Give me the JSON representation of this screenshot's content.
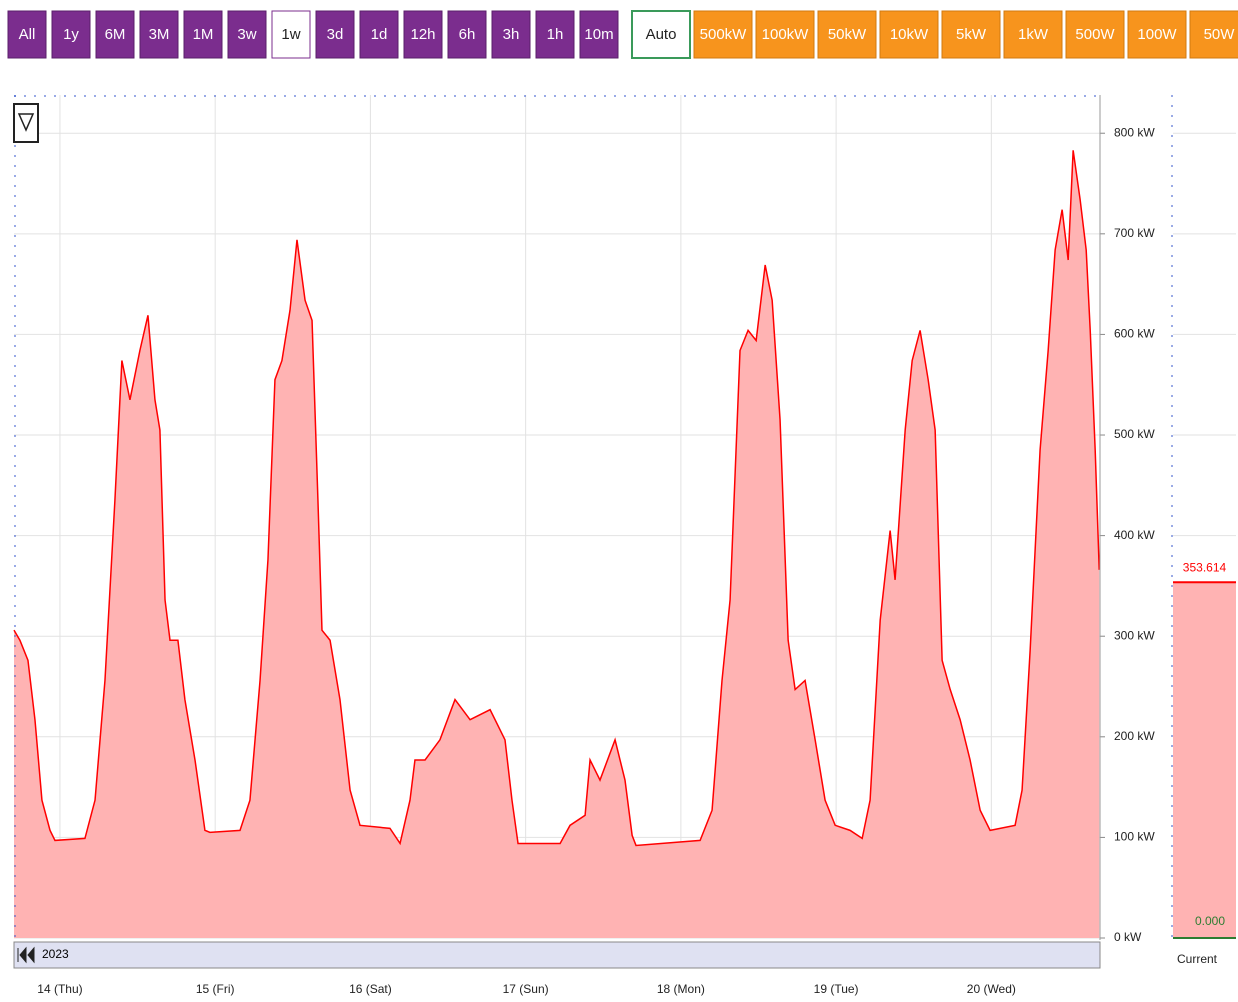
{
  "toolbar": {
    "ranges": [
      {
        "label": "All"
      },
      {
        "label": "1y"
      },
      {
        "label": "6M"
      },
      {
        "label": "3M"
      },
      {
        "label": "1M"
      },
      {
        "label": "3w"
      },
      {
        "label": "1w",
        "selected": true
      },
      {
        "label": "3d"
      },
      {
        "label": "1d"
      },
      {
        "label": "12h"
      },
      {
        "label": "6h"
      },
      {
        "label": "3h"
      },
      {
        "label": "1h"
      },
      {
        "label": "10m"
      }
    ],
    "scales": [
      {
        "label": "Auto",
        "selected": true
      },
      {
        "label": "500kW"
      },
      {
        "label": "100kW"
      },
      {
        "label": "50kW"
      },
      {
        "label": "10kW"
      },
      {
        "label": "5kW"
      },
      {
        "label": "1kW"
      },
      {
        "label": "500W"
      },
      {
        "label": "100W"
      },
      {
        "label": "50W"
      }
    ]
  },
  "chart_data": {
    "type": "area",
    "color": "#ff0000",
    "fill_color": "#ffb3b3",
    "grid": true,
    "xlim": [
      13.704,
      20.7
    ],
    "ylim": [
      0,
      838
    ],
    "xticks": [
      {
        "value": 14,
        "label": "14 (Thu)"
      },
      {
        "value": 15,
        "label": "15 (Fri)"
      },
      {
        "value": 16,
        "label": "16 (Sat)"
      },
      {
        "value": 17,
        "label": "17 (Sun)"
      },
      {
        "value": 18,
        "label": "18 (Mon)"
      },
      {
        "value": 19,
        "label": "19 (Tue)"
      },
      {
        "value": 20,
        "label": "20 (Wed)"
      }
    ],
    "yticks": [
      {
        "value": 0,
        "label": "0 kW"
      },
      {
        "value": 100,
        "label": "100 kW"
      },
      {
        "value": 200,
        "label": "200 kW"
      },
      {
        "value": 300,
        "label": "300 kW"
      },
      {
        "value": 400,
        "label": "400 kW"
      },
      {
        "value": 500,
        "label": "500 kW"
      },
      {
        "value": 600,
        "label": "600 kW"
      },
      {
        "value": 700,
        "label": "700 kW"
      },
      {
        "value": 800,
        "label": "800 kW"
      }
    ],
    "x": [
      13.704,
      13.742,
      13.794,
      13.839,
      13.884,
      13.936,
      13.968,
      14.161,
      14.226,
      14.29,
      14.354,
      14.399,
      14.451,
      14.515,
      14.567,
      14.612,
      14.644,
      14.677,
      14.709,
      14.76,
      14.805,
      14.87,
      14.934,
      14.966,
      15.16,
      15.224,
      15.289,
      15.34,
      15.385,
      15.43,
      15.482,
      15.527,
      15.579,
      15.624,
      15.662,
      15.688,
      15.74,
      15.804,
      15.869,
      15.933,
      16.126,
      16.191,
      16.255,
      16.287,
      16.352,
      16.448,
      16.545,
      16.642,
      16.771,
      16.867,
      16.912,
      16.951,
      17.222,
      17.286,
      17.383,
      17.415,
      17.479,
      17.576,
      17.64,
      17.686,
      17.711,
      18.124,
      18.201,
      18.265,
      18.317,
      18.381,
      18.433,
      18.485,
      18.543,
      18.588,
      18.639,
      18.691,
      18.736,
      18.8,
      18.865,
      18.929,
      18.994,
      19.09,
      19.168,
      19.219,
      19.284,
      19.348,
      19.38,
      19.445,
      19.49,
      19.541,
      19.593,
      19.638,
      19.683,
      19.735,
      19.799,
      19.863,
      19.928,
      19.992,
      20.153,
      20.198,
      20.25,
      20.314,
      20.366,
      20.411,
      20.456,
      20.495,
      20.527,
      20.572,
      20.611,
      20.637,
      20.669,
      20.695
    ],
    "values": [
      306,
      296,
      276,
      217,
      137,
      107,
      97,
      99,
      137,
      256,
      435,
      574,
      535,
      584,
      619,
      535,
      505,
      336,
      296,
      296,
      237,
      177,
      107,
      105,
      107,
      137,
      256,
      376,
      555,
      574,
      624,
      694,
      634,
      614,
      435,
      306,
      296,
      237,
      147,
      112,
      109,
      94,
      137,
      177,
      177,
      197,
      237,
      217,
      227,
      197,
      137,
      94,
      94,
      112,
      122,
      177,
      157,
      197,
      157,
      102,
      92,
      97,
      127,
      256,
      336,
      584,
      604,
      594,
      669,
      634,
      515,
      296,
      247,
      256,
      197,
      137,
      112,
      107,
      99,
      137,
      316,
      405,
      356,
      505,
      574,
      604,
      555,
      505,
      276,
      247,
      217,
      177,
      127,
      107,
      112,
      147,
      286,
      485,
      584,
      684,
      724,
      674,
      783,
      734,
      684,
      604,
      485,
      366
    ],
    "navigator_label": "2023",
    "current": {
      "name": "Current",
      "values": [
        353.614
      ],
      "value_labels": [
        "353.614"
      ],
      "baseline": 0,
      "baseline_label": "0.000"
    }
  }
}
